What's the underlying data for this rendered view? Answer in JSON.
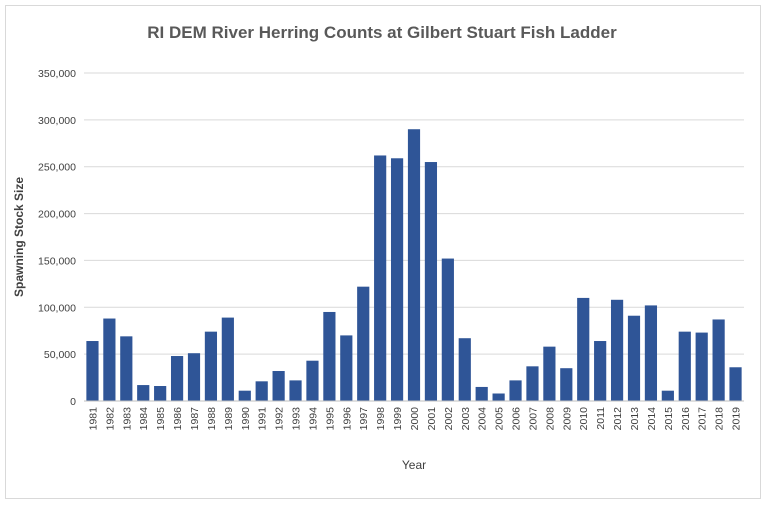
{
  "chart_data": {
    "type": "bar",
    "title": "RI DEM River Herring Counts at Gilbert Stuart Fish Ladder",
    "xlabel": "Year",
    "ylabel": "Spawning Stock Size",
    "ylim": [
      0,
      350000
    ],
    "yticks": [
      "0",
      "50,000",
      "100,000",
      "150,000",
      "200,000",
      "250,000",
      "300,000",
      "350,000"
    ],
    "grid": true,
    "legend": "none",
    "bar_color": "#2f5597",
    "categories": [
      "1981",
      "1982",
      "1983",
      "1984",
      "1985",
      "1986",
      "1987",
      "1988",
      "1989",
      "1990",
      "1991",
      "1992",
      "1993",
      "1994",
      "1995",
      "1996",
      "1997",
      "1998",
      "1999",
      "2000",
      "2001",
      "2002",
      "2003",
      "2004",
      "2005",
      "2006",
      "2007",
      "2008",
      "2009",
      "2010",
      "2011",
      "2012",
      "2013",
      "2014",
      "2015",
      "2016",
      "2017",
      "2018",
      "2019"
    ],
    "values": [
      64000,
      88000,
      69000,
      17000,
      16000,
      48000,
      51000,
      74000,
      89000,
      11000,
      21000,
      32000,
      22000,
      43000,
      95000,
      70000,
      122000,
      262000,
      259000,
      290000,
      255000,
      152000,
      67000,
      15000,
      8000,
      22000,
      37000,
      58000,
      35000,
      110000,
      64000,
      108000,
      91000,
      102000,
      11000,
      74000,
      73000,
      87000,
      36000
    ]
  }
}
